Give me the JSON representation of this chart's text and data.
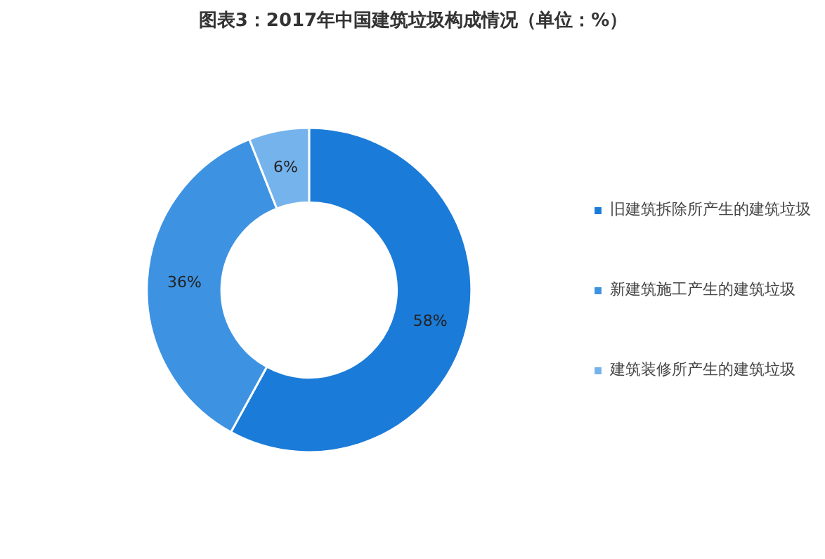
{
  "chart_data": {
    "type": "donut",
    "title": "图表3：2017年中国建筑垃圾构成情况（单位：%）",
    "categories": [
      "旧建筑拆除所产生的建筑垃圾",
      "新建筑施工产生的建筑垃圾",
      "建筑装修所产生的建筑垃圾"
    ],
    "values": [
      58,
      36,
      6
    ],
    "colors": [
      "#1b7bd8",
      "#3d93e2",
      "#74b3ec"
    ],
    "value_labels": [
      "58%",
      "36%",
      "6%"
    ],
    "legend": "right"
  }
}
